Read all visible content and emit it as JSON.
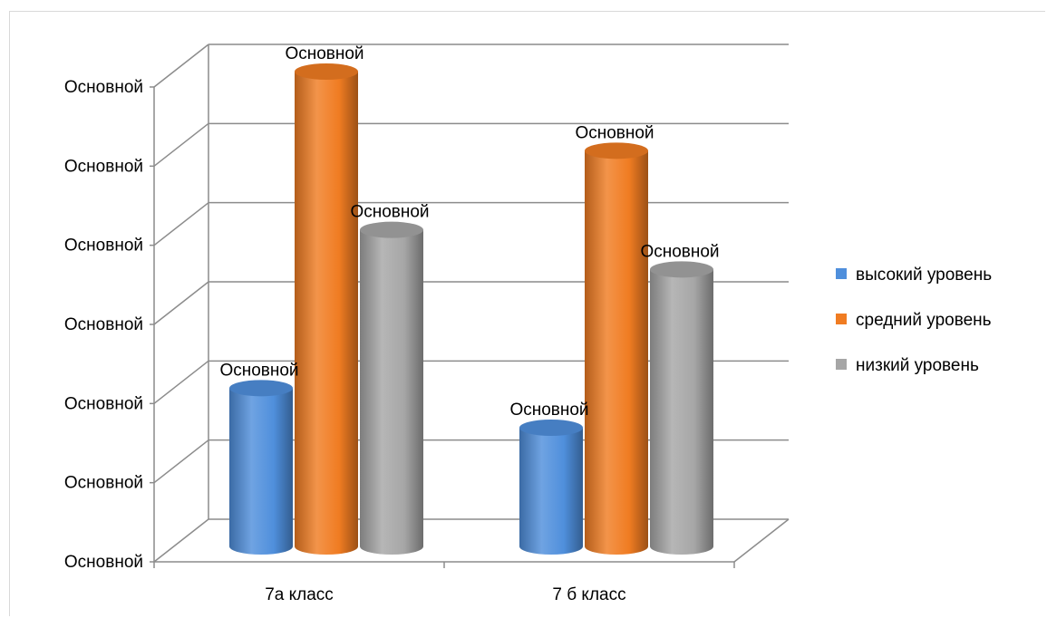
{
  "chart_data": {
    "type": "bar",
    "style": "3d-cylinder",
    "categories": [
      "7а класс",
      "7 б класс"
    ],
    "series": [
      {
        "name": "высокий уровень",
        "color": "#4f8fdc",
        "values": [
          2,
          1.5
        ]
      },
      {
        "name": "средний уровень",
        "color": "#f07c22",
        "values": [
          6,
          5
        ]
      },
      {
        "name": "низкий уровень",
        "color": "#a6a6a6",
        "values": [
          4,
          3.5
        ]
      }
    ],
    "data_label_text": "Основной",
    "y_tick_labels": [
      "Основной",
      "Основной",
      "Основной",
      "Основной",
      "Основной",
      "Основной",
      "Основной"
    ],
    "ylim": [
      0,
      6
    ],
    "grid": true,
    "legend_position": "right"
  }
}
